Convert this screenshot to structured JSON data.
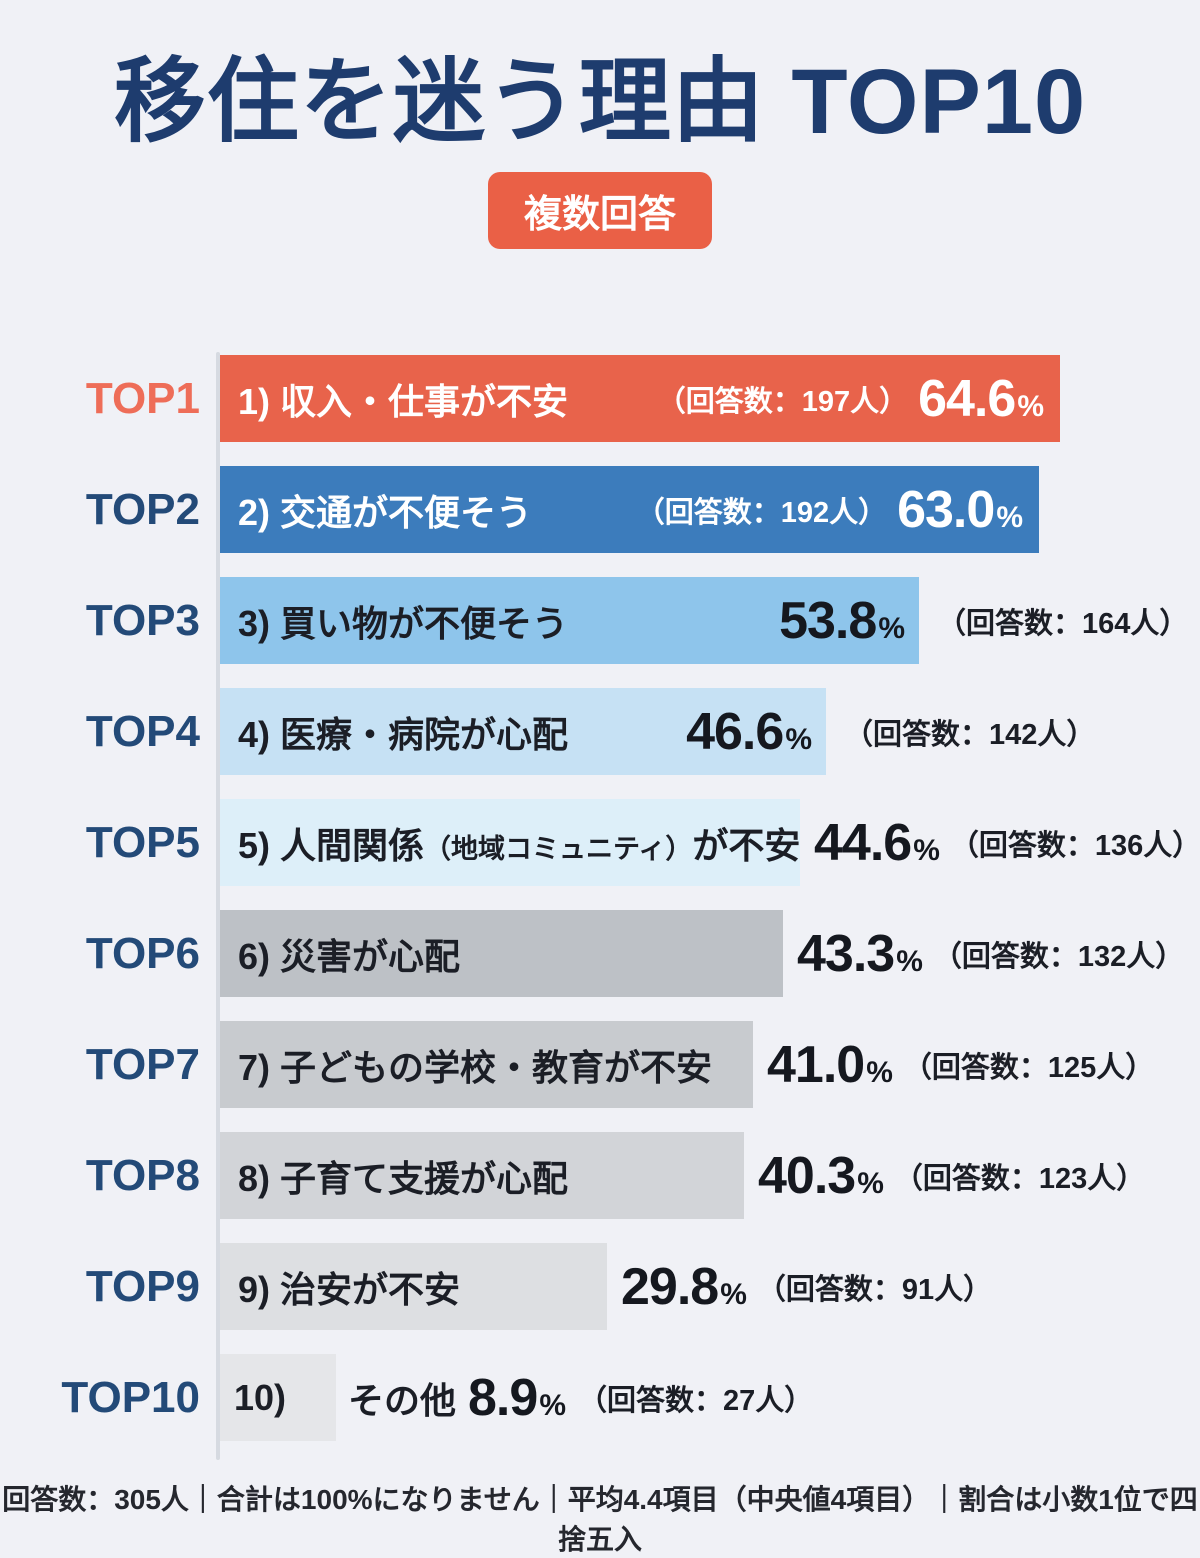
{
  "page": {
    "title": "移住を迷う理由 TOP10",
    "badge": "複数回答",
    "footer": "回答数：305人｜合計は100%になりません｜平均4.4項目（中央値4項目）｜割合は小数1位で四捨五入"
  },
  "colors": {
    "background": "#F0F1F6",
    "title": "#1E3C6E",
    "badge_bg": "#EA6046",
    "axis_line": "#D6DAE1",
    "rank_default": "#234A78",
    "dark_text": "#1B1E26"
  },
  "chart_data": {
    "type": "bar",
    "orientation": "horizontal",
    "unit": "%",
    "title": "移住を迷う理由 TOP10",
    "subtitle_badge": "複数回答",
    "xlim": [
      0,
      65
    ],
    "categories": [
      "収入・仕事が不安",
      "交通が不便そう",
      "買い物が不便そう",
      "医療・病院が心配",
      "人間関係（地域コミュニティ）が不安",
      "災害が心配",
      "子どもの学校・教育が不安",
      "子育て支援が心配",
      "治安が不安",
      "その他"
    ],
    "values": [
      64.6,
      63.0,
      53.8,
      46.6,
      44.6,
      43.3,
      41.0,
      40.3,
      29.8,
      8.9
    ],
    "respondent_counts": [
      197,
      192,
      164,
      142,
      136,
      132,
      125,
      123,
      91,
      27
    ],
    "rows": [
      {
        "rank": "TOP1",
        "label": "1) 収入・仕事が不安",
        "value": 64.6,
        "pct": "64.6",
        "count": "（回答数：197人）",
        "bar_color": "#E8634B",
        "rank_color": "#EE6D58",
        "text": "light",
        "variant": "inside-all"
      },
      {
        "rank": "TOP2",
        "label": "2) 交通が不便そう",
        "value": 63.0,
        "pct": "63.0",
        "count": "（回答数：192人）",
        "bar_color": "#3C7CBC",
        "text": "light",
        "variant": "inside-all"
      },
      {
        "rank": "TOP3",
        "label": "3) 買い物が不便そう",
        "value": 53.8,
        "pct": "53.8",
        "count": "（回答数：164人）",
        "bar_color": "#8EC5EB",
        "text": "dark",
        "variant": "pct-in-count-out"
      },
      {
        "rank": "TOP4",
        "label": "4) 医療・病院が心配",
        "value": 46.6,
        "pct": "46.6",
        "count": "（回答数：142人）",
        "bar_color": "#C6E1F4",
        "text": "dark",
        "variant": "pct-in-count-out"
      },
      {
        "rank": "TOP5",
        "label": "5) 人間関係",
        "label_small": "（地域コミュニティ）",
        "label_suffix": "が不安",
        "value": 44.6,
        "pct": "44.6",
        "count": "（回答数：136人）",
        "bar_color": "#DDEFF9",
        "text": "dark",
        "variant": "after-bar"
      },
      {
        "rank": "TOP6",
        "label": "6) 災害が心配",
        "value": 43.3,
        "pct": "43.3",
        "count": "（回答数：132人）",
        "bar_color": "#BDC1C6",
        "text": "dark",
        "variant": "after-bar"
      },
      {
        "rank": "TOP7",
        "label": "7) 子どもの学校・教育が不安",
        "value": 41.0,
        "pct": "41.0",
        "count": "（回答数：125人）",
        "bar_color": "#C8CBCF",
        "text": "dark",
        "variant": "after-bar"
      },
      {
        "rank": "TOP8",
        "label": "8) 子育て支援が心配",
        "value": 40.3,
        "pct": "40.3",
        "count": "（回答数：123人）",
        "bar_color": "#D2D4D8",
        "text": "dark",
        "variant": "after-bar"
      },
      {
        "rank": "TOP9",
        "label": "9) 治安が不安",
        "value": 29.8,
        "pct": "29.8",
        "count": "（回答数：91人）",
        "bar_color": "#DDDFE2",
        "text": "dark",
        "variant": "after-bar"
      },
      {
        "rank": "TOP10",
        "label": "10)",
        "label_outside": "その他",
        "value": 8.9,
        "pct": "8.9",
        "count": "（回答数：27人）",
        "bar_color": "#E5E6E9",
        "text": "dark",
        "variant": "label-split"
      }
    ]
  }
}
